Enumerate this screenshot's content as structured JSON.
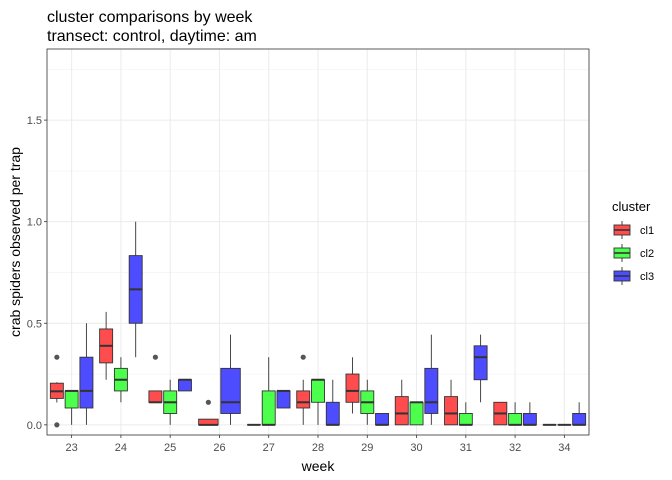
{
  "chart_data": {
    "type": "boxplot",
    "title": "cluster comparisons by week",
    "subtitle": "transect: control, daytime: am",
    "xlabel": "week",
    "ylabel": "crab spiders observed per trap",
    "ylim": [
      -0.05,
      1.85
    ],
    "yticks": [
      0.0,
      0.5,
      1.0,
      1.5
    ],
    "ytick_labels": [
      "0.0",
      "0.5",
      "1.0",
      "1.5"
    ],
    "categories": [
      "23",
      "24",
      "25",
      "26",
      "27",
      "28",
      "29",
      "30",
      "31",
      "32",
      "34"
    ],
    "grid": true,
    "legend": {
      "title": "cluster",
      "position": "right",
      "entries": [
        "cl1",
        "cl2",
        "cl3"
      ]
    },
    "series": [
      {
        "name": "cl1",
        "color": "#FF4D4D",
        "boxes": [
          {
            "week": "23",
            "min": 0.11,
            "q1": 0.13,
            "median": 0.165,
            "q3": 0.205,
            "max": 0.21,
            "outliers": [
              0.0,
              0.333
            ]
          },
          {
            "week": "24",
            "min": 0.222,
            "q1": 0.305,
            "median": 0.389,
            "q3": 0.472,
            "max": 0.556,
            "outliers": []
          },
          {
            "week": "25",
            "min": 0.111,
            "q1": 0.111,
            "median": 0.111,
            "q3": 0.167,
            "max": 0.167,
            "outliers": [
              0.333
            ]
          },
          {
            "week": "26",
            "min": 0.0,
            "q1": 0.0,
            "median": 0.0,
            "q3": 0.028,
            "max": 0.028,
            "outliers": [
              0.111
            ]
          },
          {
            "week": "27",
            "min": 0.0,
            "q1": 0.0,
            "median": 0.0,
            "q3": 0.0,
            "max": 0.0,
            "outliers": []
          },
          {
            "week": "28",
            "min": 0.0,
            "q1": 0.083,
            "median": 0.111,
            "q3": 0.167,
            "max": 0.222,
            "outliers": [
              0.333
            ]
          },
          {
            "week": "29",
            "min": 0.056,
            "q1": 0.111,
            "median": 0.167,
            "q3": 0.25,
            "max": 0.333,
            "outliers": []
          },
          {
            "week": "30",
            "min": 0.0,
            "q1": 0.0,
            "median": 0.056,
            "q3": 0.139,
            "max": 0.222,
            "outliers": []
          },
          {
            "week": "31",
            "min": 0.0,
            "q1": 0.0,
            "median": 0.056,
            "q3": 0.139,
            "max": 0.222,
            "outliers": []
          },
          {
            "week": "32",
            "min": 0.0,
            "q1": 0.0,
            "median": 0.056,
            "q3": 0.111,
            "max": 0.111,
            "outliers": []
          },
          {
            "week": "34",
            "min": 0.0,
            "q1": 0.0,
            "median": 0.0,
            "q3": 0.0,
            "max": 0.0,
            "outliers": []
          }
        ]
      },
      {
        "name": "cl2",
        "color": "#4DFF4D",
        "boxes": [
          {
            "week": "23",
            "min": 0.0,
            "q1": 0.083,
            "median": 0.167,
            "q3": 0.167,
            "max": 0.167,
            "outliers": []
          },
          {
            "week": "24",
            "min": 0.111,
            "q1": 0.167,
            "median": 0.222,
            "q3": 0.278,
            "max": 0.333,
            "outliers": []
          },
          {
            "week": "25",
            "min": 0.0,
            "q1": 0.056,
            "median": 0.111,
            "q3": 0.167,
            "max": 0.222,
            "outliers": []
          },
          {
            "week": "27",
            "min": 0.0,
            "q1": 0.0,
            "median": 0.0,
            "q3": 0.167,
            "max": 0.333,
            "outliers": []
          },
          {
            "week": "28",
            "min": 0.0,
            "q1": 0.111,
            "median": 0.222,
            "q3": 0.222,
            "max": 0.222,
            "outliers": []
          },
          {
            "week": "29",
            "min": 0.0,
            "q1": 0.056,
            "median": 0.111,
            "q3": 0.167,
            "max": 0.222,
            "outliers": []
          },
          {
            "week": "30",
            "min": 0.0,
            "q1": 0.0,
            "median": 0.111,
            "q3": 0.111,
            "max": 0.111,
            "outliers": []
          },
          {
            "week": "31",
            "min": 0.0,
            "q1": 0.0,
            "median": 0.0,
            "q3": 0.056,
            "max": 0.111,
            "outliers": []
          },
          {
            "week": "32",
            "min": 0.0,
            "q1": 0.0,
            "median": 0.0,
            "q3": 0.056,
            "max": 0.111,
            "outliers": []
          },
          {
            "week": "34",
            "min": 0.0,
            "q1": 0.0,
            "median": 0.0,
            "q3": 0.0,
            "max": 0.0,
            "outliers": []
          }
        ]
      },
      {
        "name": "cl3",
        "color": "#4D4DFF",
        "boxes": [
          {
            "week": "23",
            "min": 0.0,
            "q1": 0.083,
            "median": 0.167,
            "q3": 0.333,
            "max": 0.5,
            "outliers": []
          },
          {
            "week": "24",
            "min": 0.333,
            "q1": 0.5,
            "median": 0.667,
            "q3": 0.833,
            "max": 1.0,
            "outliers": []
          },
          {
            "week": "25",
            "min": 0.167,
            "q1": 0.167,
            "median": 0.222,
            "q3": 0.222,
            "max": 0.222,
            "outliers": []
          },
          {
            "week": "26",
            "min": 0.0,
            "q1": 0.056,
            "median": 0.111,
            "q3": 0.278,
            "max": 0.444,
            "outliers": []
          },
          {
            "week": "27",
            "min": 0.083,
            "q1": 0.083,
            "median": 0.167,
            "q3": 0.167,
            "max": 0.167,
            "outliers": []
          },
          {
            "week": "28",
            "min": 0.0,
            "q1": 0.0,
            "median": 0.0,
            "q3": 0.111,
            "max": 0.222,
            "outliers": []
          },
          {
            "week": "29",
            "min": 0.0,
            "q1": 0.0,
            "median": 0.0,
            "q3": 0.056,
            "max": 0.056,
            "outliers": []
          },
          {
            "week": "30",
            "min": 0.0,
            "q1": 0.056,
            "median": 0.111,
            "q3": 0.278,
            "max": 0.444,
            "outliers": []
          },
          {
            "week": "31",
            "min": 0.111,
            "q1": 0.222,
            "median": 0.333,
            "q3": 0.389,
            "max": 0.444,
            "outliers": []
          },
          {
            "week": "32",
            "min": 0.0,
            "q1": 0.0,
            "median": 0.0,
            "q3": 0.056,
            "max": 0.111,
            "outliers": []
          },
          {
            "week": "34",
            "min": 0.0,
            "q1": 0.0,
            "median": 0.0,
            "q3": 0.056,
            "max": 0.111,
            "outliers": []
          }
        ]
      }
    ]
  }
}
